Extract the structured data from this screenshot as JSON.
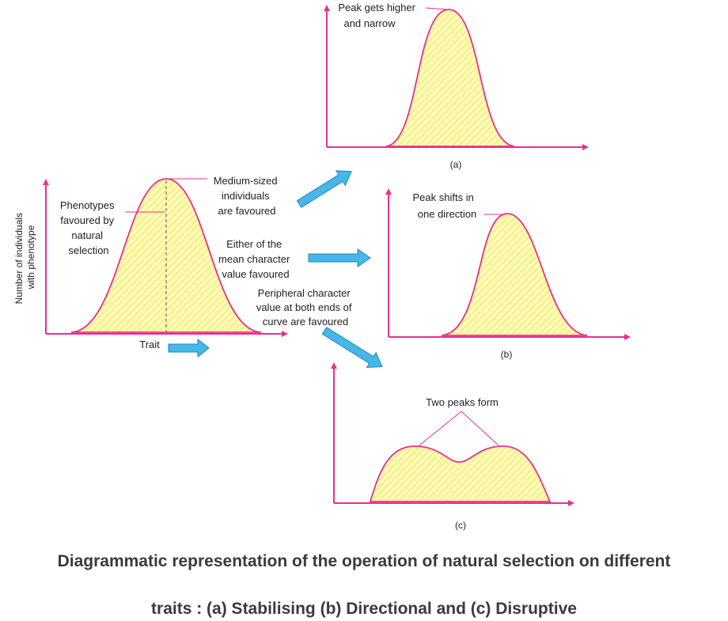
{
  "colors": {
    "axis": "#e8308c",
    "curve_fill": "#fffcb0",
    "curve_hatch": "#d9cf60",
    "arrow": "#47b6e8",
    "arrow_edge": "#1d87bf",
    "caption": "#3a3a3a"
  },
  "main": {
    "ylabel": [
      "Number of individuals",
      "with phenotype"
    ],
    "xlabel": "Trait",
    "favoured_label": [
      "Phenotypes",
      "favoured by",
      "natural",
      "selection"
    ],
    "medium_label": [
      "Medium-sized",
      "individuals",
      "are favoured"
    ],
    "either_label": [
      "Either of the",
      "mean character",
      "value favoured"
    ],
    "peripheral_label": [
      "Peripheral character",
      "value at both ends of",
      "curve are favoured"
    ]
  },
  "panel_a": {
    "note": [
      "Peak gets higher",
      "and narrow"
    ],
    "label": "(a)"
  },
  "panel_b": {
    "note": [
      "Peak shifts in",
      "one direction"
    ],
    "label": "(b)"
  },
  "panel_c": {
    "note": "Two peaks form",
    "label": "(c)"
  },
  "caption": {
    "line1": "Diagrammatic representation of the operation of natural selection on different",
    "line2": "traits : (a) Stabilising (b) Directional and (c) Disruptive"
  }
}
